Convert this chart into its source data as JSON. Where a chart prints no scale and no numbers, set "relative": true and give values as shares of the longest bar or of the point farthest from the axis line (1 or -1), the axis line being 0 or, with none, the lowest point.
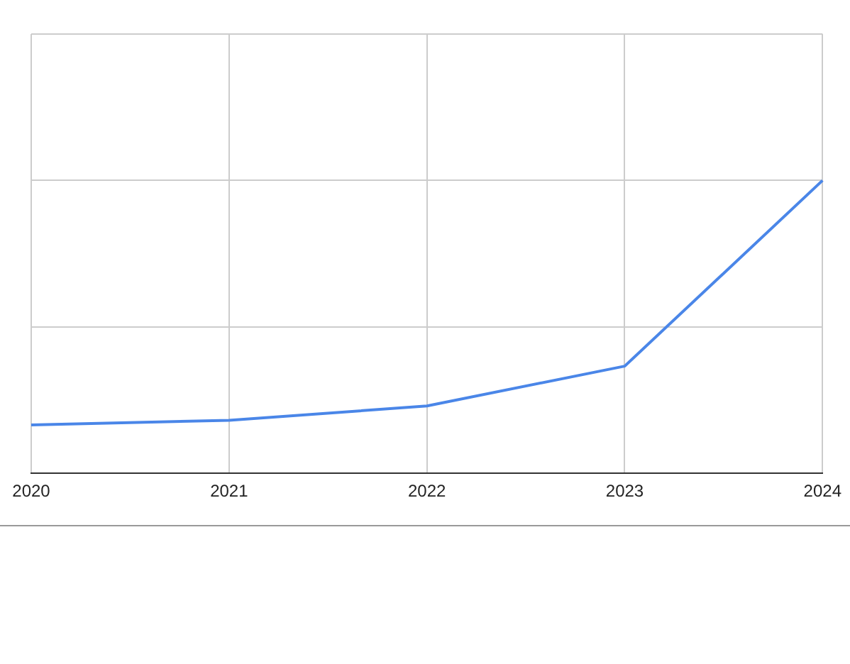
{
  "chart_data": {
    "type": "line",
    "categories": [
      "2020",
      "2021",
      "2022",
      "2023",
      "2024"
    ],
    "relative": true,
    "series": [
      {
        "color": "#4a86e8",
        "values": [
          0.165,
          0.181,
          0.23,
          0.366,
          1
        ]
      }
    ],
    "grid": true,
    "legend": false,
    "marker": "none",
    "line_style": "solid"
  }
}
